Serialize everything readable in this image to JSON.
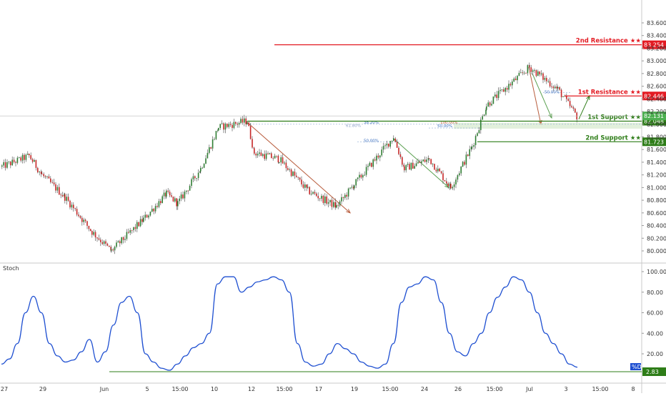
{
  "chart_data": [
    {
      "type": "candlestick",
      "title": "",
      "price_axis": {
        "range": [
          79.9,
          83.75
        ],
        "ticks": [
          "83.600",
          "83.400",
          "83.200",
          "83.000",
          "82.800",
          "82.600",
          "82.400",
          "82.200",
          "82.000",
          "81.800",
          "81.600",
          "81.400",
          "81.200",
          "81.000",
          "80.800",
          "80.600",
          "80.400",
          "80.200",
          "80.000"
        ]
      },
      "x_axis": {
        "ticks": [
          "27",
          "29",
          "Jun",
          "5",
          "15:00",
          "10",
          "12",
          "15:00",
          "17",
          "19",
          "15:00",
          "24",
          "26",
          "15:00",
          "Jul",
          "3",
          "15:00",
          "8"
        ]
      },
      "levels": [
        {
          "label": "2nd Resistance ★★",
          "value": 83.254,
          "tag": "83.254",
          "color": "#e31b23"
        },
        {
          "label": "1st Resistance ★★",
          "value": 82.446,
          "tag": "82.446",
          "color": "#e31b23"
        },
        {
          "label": "1st Support ★★",
          "value": 82.048,
          "tag": "82.048",
          "color": "#2e7d18"
        },
        {
          "label": "2nd Support ★★",
          "value": 81.723,
          "tag": "81.723",
          "color": "#2e7d18"
        }
      ],
      "current_price": {
        "value": 82.131,
        "tag": "82.131",
        "color": "#4caf50"
      },
      "fib_labels": [
        "61.80%",
        "38.20%",
        "100.00%",
        "50.00%",
        "50.00%",
        "50.00%"
      ],
      "ohlc_anchors": [
        {
          "x": "27",
          "close": 81.33
        },
        {
          "x": "27",
          "close": 81.5
        },
        {
          "x": "29",
          "close": 81.2
        },
        {
          "x": "29",
          "close": 80.85
        },
        {
          "x": "Jun",
          "close": 80.3
        },
        {
          "x": "Jun",
          "close": 80.0
        },
        {
          "x": "5",
          "close": 80.5
        },
        {
          "x": "5",
          "close": 80.9
        },
        {
          "x": "15:00",
          "close": 80.75
        },
        {
          "x": "15:00",
          "close": 81.3
        },
        {
          "x": "10",
          "close": 81.95
        },
        {
          "x": "12",
          "close": 82.05
        },
        {
          "x": "12",
          "close": 81.55
        },
        {
          "x": "15:00",
          "close": 81.45
        },
        {
          "x": "17",
          "close": 80.95
        },
        {
          "x": "19",
          "close": 80.7
        },
        {
          "x": "19",
          "close": 81.05
        },
        {
          "x": "15:00",
          "close": 81.8
        },
        {
          "x": "24",
          "close": 81.3
        },
        {
          "x": "24",
          "close": 81.45
        },
        {
          "x": "26",
          "close": 81.0
        },
        {
          "x": "26",
          "close": 81.65
        },
        {
          "x": "15:00",
          "close": 82.3
        },
        {
          "x": "Jul",
          "close": 82.9
        },
        {
          "x": "Jul",
          "close": 82.55
        },
        {
          "x": "3",
          "close": 82.1
        }
      ]
    },
    {
      "type": "line",
      "title": "Stoch",
      "y_axis": {
        "range": [
          0,
          105
        ],
        "ticks": [
          "100.00",
          "80.00",
          "60.00",
          "40.00",
          "20.00"
        ]
      },
      "level": {
        "value": 2.83,
        "tag": "2.83"
      },
      "legend_tag": "%D",
      "series": [
        {
          "name": "%D",
          "values": [
            10,
            15,
            30,
            60,
            76,
            60,
            30,
            18,
            12,
            14,
            22,
            34,
            12,
            22,
            48,
            70,
            76,
            60,
            20,
            12,
            6,
            4,
            10,
            18,
            26,
            30,
            40,
            88,
            95,
            95,
            80,
            85,
            90,
            92,
            95,
            92,
            80,
            30,
            12,
            8,
            10,
            20,
            30,
            25,
            20,
            12,
            8,
            6,
            10,
            30,
            70,
            85,
            88,
            95,
            92,
            70,
            40,
            22,
            18,
            30,
            40,
            60,
            75,
            85,
            95,
            92,
            80,
            60,
            40,
            30,
            20,
            10,
            7
          ]
        }
      ]
    }
  ]
}
